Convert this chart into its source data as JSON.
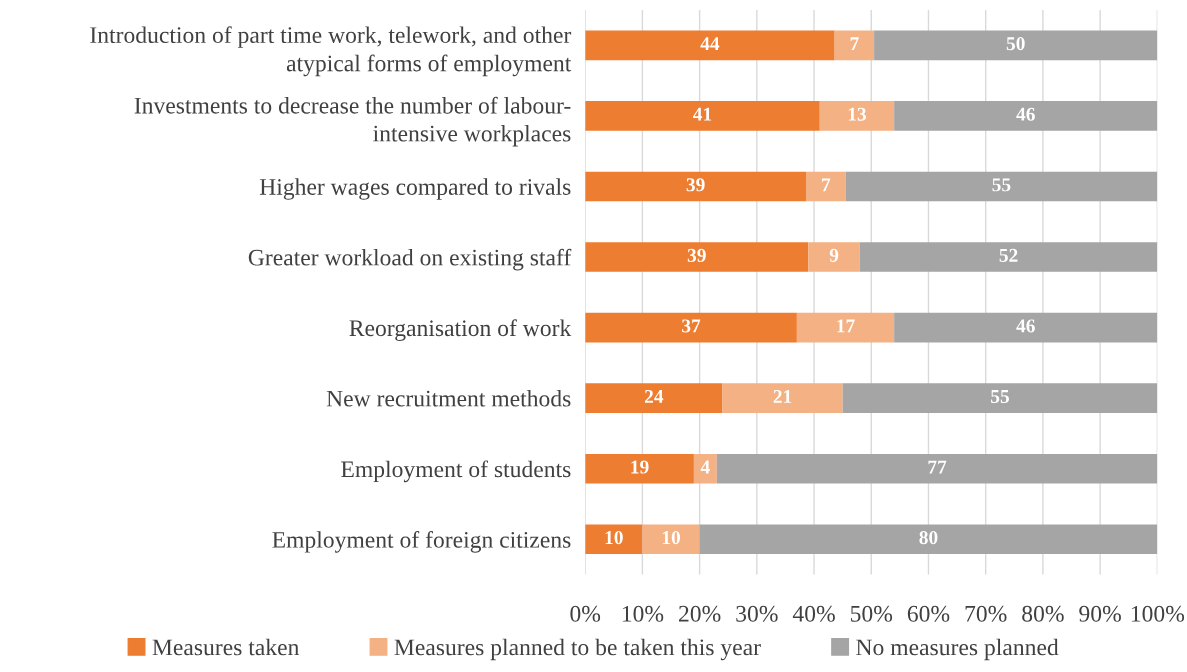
{
  "chart_data": {
    "type": "bar",
    "orientation": "horizontal",
    "stacked": true,
    "categories": [
      "Introduction of part time work, telework, and other\natypical forms of employment",
      "Investments to decrease the number of labour-\nintensive workplaces",
      "Higher wages compared to rivals",
      "Greater workload on existing staff",
      "Reorganisation of work",
      "New recruitment methods",
      "Employment of students",
      "Employment of foreign citizens"
    ],
    "series": [
      {
        "name": "Measures taken",
        "color": "#ed7d31",
        "values": [
          43.6,
          41,
          38.6,
          39,
          37,
          24,
          19,
          10
        ],
        "value_labels": [
          "44",
          "41",
          "39",
          "39",
          "37",
          "24",
          "19",
          "10"
        ]
      },
      {
        "name": "Measures planned to be taken this year",
        "color": "#f4b183",
        "values": [
          6.9,
          13,
          6.9,
          9,
          17,
          21,
          4,
          10
        ],
        "value_labels": [
          "7",
          "13",
          "7",
          "9",
          "17",
          "21",
          "4",
          "10"
        ]
      },
      {
        "name": "No measures planned",
        "color": "#a5a5a5",
        "values": [
          49.5,
          46,
          54.5,
          52,
          46,
          55,
          77,
          80
        ],
        "value_labels": [
          "50",
          "46",
          "55",
          "52",
          "46",
          "55",
          "77",
          "80"
        ]
      }
    ],
    "xlim": [
      0,
      100
    ],
    "xticks": [
      {
        "value": 0,
        "label": "0%"
      },
      {
        "value": 10,
        "label": "10%"
      },
      {
        "value": 20,
        "label": "20%"
      },
      {
        "value": 30,
        "label": "30%"
      },
      {
        "value": 40,
        "label": "40%"
      },
      {
        "value": 50,
        "label": "50%"
      },
      {
        "value": 60,
        "label": "60%"
      },
      {
        "value": 70,
        "label": "70%"
      },
      {
        "value": 80,
        "label": "80%"
      },
      {
        "value": 90,
        "label": "90%"
      },
      {
        "value": 100,
        "label": "100%"
      }
    ],
    "grid": "x",
    "legend": "bottom"
  }
}
